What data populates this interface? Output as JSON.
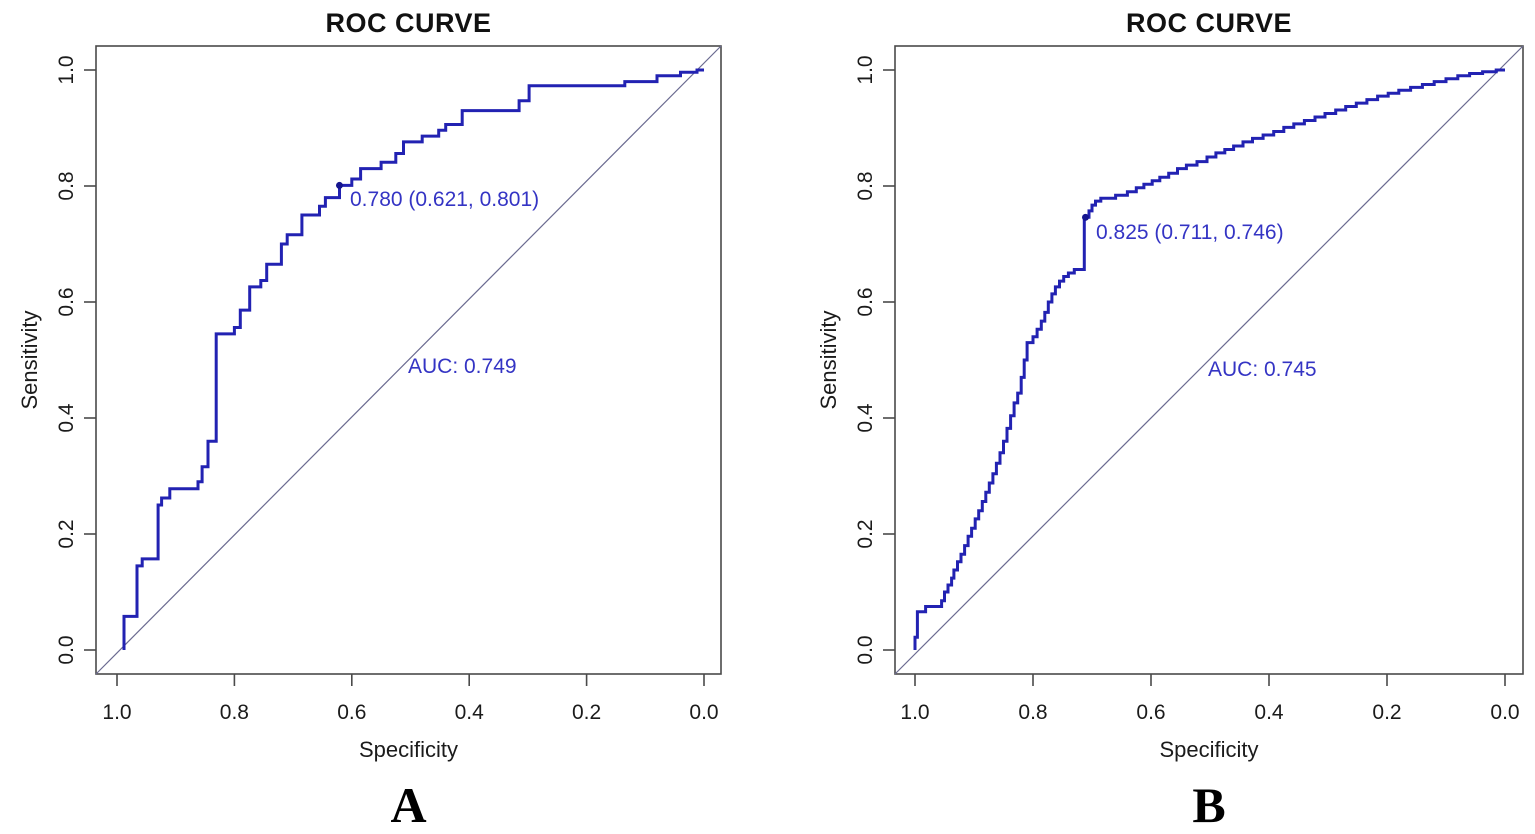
{
  "figure": {
    "background": "#ffffff"
  },
  "colors": {
    "curve": "#2222b2",
    "curve_dark": "#15158f",
    "annotation_text": "#3434c4",
    "diagonal": "#6a6a90",
    "frame": "#4a4a4a",
    "tick_text": "#1b1b1b",
    "axis_title_text": "#1b1b1b",
    "main_title_text": "#111111",
    "panel_letter_text": "#000000"
  },
  "chart_data": [
    {
      "type": "line",
      "subtype": "roc_step_curve",
      "title": "ROC CURVE",
      "panel_label": "A",
      "xlabel": "Specificity",
      "ylabel": "Sensitivity",
      "x_tick_labels": [
        "1.0",
        "0.8",
        "0.6",
        "0.4",
        "0.2",
        "0.0"
      ],
      "y_tick_labels": [
        "0.0",
        "0.2",
        "0.4",
        "0.6",
        "0.8",
        "1.0"
      ],
      "xlim": [
        1.0,
        0.0
      ],
      "ylim": [
        0.0,
        1.0
      ],
      "x_axis_reversed": true,
      "grid": false,
      "legend": false,
      "diagonal_reference": true,
      "auc": 0.749,
      "auc_label": "AUC: 0.749",
      "optimal_point": {
        "label": "0.780 (0.621, 0.801)",
        "threshold": 0.78,
        "specificity": 0.621,
        "sensitivity": 0.801
      },
      "series": [
        {
          "name": "ROC curve",
          "points_spec_sens": [
            [
              0.988,
              0.0
            ],
            [
              0.988,
              0.058
            ],
            [
              0.966,
              0.058
            ],
            [
              0.966,
              0.145
            ],
            [
              0.957,
              0.145
            ],
            [
              0.957,
              0.157
            ],
            [
              0.93,
              0.157
            ],
            [
              0.93,
              0.25
            ],
            [
              0.924,
              0.25
            ],
            [
              0.924,
              0.262
            ],
            [
              0.91,
              0.262
            ],
            [
              0.91,
              0.278
            ],
            [
              0.862,
              0.278
            ],
            [
              0.862,
              0.29
            ],
            [
              0.855,
              0.29
            ],
            [
              0.855,
              0.316
            ],
            [
              0.845,
              0.316
            ],
            [
              0.845,
              0.36
            ],
            [
              0.831,
              0.36
            ],
            [
              0.831,
              0.545
            ],
            [
              0.8,
              0.545
            ],
            [
              0.8,
              0.556
            ],
            [
              0.79,
              0.556
            ],
            [
              0.79,
              0.586
            ],
            [
              0.774,
              0.586
            ],
            [
              0.774,
              0.626
            ],
            [
              0.755,
              0.626
            ],
            [
              0.755,
              0.637
            ],
            [
              0.745,
              0.637
            ],
            [
              0.745,
              0.665
            ],
            [
              0.72,
              0.665
            ],
            [
              0.72,
              0.7
            ],
            [
              0.71,
              0.7
            ],
            [
              0.71,
              0.716
            ],
            [
              0.685,
              0.716
            ],
            [
              0.685,
              0.75
            ],
            [
              0.655,
              0.75
            ],
            [
              0.655,
              0.765
            ],
            [
              0.645,
              0.765
            ],
            [
              0.645,
              0.78
            ],
            [
              0.621,
              0.78
            ],
            [
              0.621,
              0.801
            ],
            [
              0.6,
              0.801
            ],
            [
              0.6,
              0.812
            ],
            [
              0.585,
              0.812
            ],
            [
              0.585,
              0.83
            ],
            [
              0.55,
              0.83
            ],
            [
              0.55,
              0.841
            ],
            [
              0.525,
              0.841
            ],
            [
              0.525,
              0.856
            ],
            [
              0.512,
              0.856
            ],
            [
              0.512,
              0.876
            ],
            [
              0.48,
              0.876
            ],
            [
              0.48,
              0.886
            ],
            [
              0.452,
              0.886
            ],
            [
              0.452,
              0.896
            ],
            [
              0.44,
              0.896
            ],
            [
              0.44,
              0.906
            ],
            [
              0.412,
              0.906
            ],
            [
              0.412,
              0.93
            ],
            [
              0.315,
              0.93
            ],
            [
              0.315,
              0.947
            ],
            [
              0.298,
              0.947
            ],
            [
              0.298,
              0.973
            ],
            [
              0.135,
              0.973
            ],
            [
              0.135,
              0.98
            ],
            [
              0.08,
              0.98
            ],
            [
              0.08,
              0.99
            ],
            [
              0.04,
              0.99
            ],
            [
              0.04,
              0.996
            ],
            [
              0.012,
              0.996
            ],
            [
              0.012,
              1.0
            ],
            [
              0.0,
              1.0
            ]
          ]
        }
      ]
    },
    {
      "type": "line",
      "subtype": "roc_step_curve",
      "title": "ROC CURVE",
      "panel_label": "B",
      "xlabel": "Specificity",
      "ylabel": "Sensitivity",
      "x_tick_labels": [
        "1.0",
        "0.8",
        "0.6",
        "0.4",
        "0.2",
        "0.0"
      ],
      "y_tick_labels": [
        "0.0",
        "0.2",
        "0.4",
        "0.6",
        "0.8",
        "1.0"
      ],
      "xlim": [
        1.0,
        0.0
      ],
      "ylim": [
        0.0,
        1.0
      ],
      "x_axis_reversed": true,
      "grid": false,
      "legend": false,
      "diagonal_reference": true,
      "auc": 0.745,
      "auc_label": "AUC: 0.745",
      "optimal_point": {
        "label": "0.825 (0.711, 0.746)",
        "threshold": 0.825,
        "specificity": 0.711,
        "sensitivity": 0.746
      },
      "series": [
        {
          "name": "ROC curve",
          "points_spec_sens": [
            [
              1.0,
              0.0
            ],
            [
              1.0,
              0.022
            ],
            [
              0.996,
              0.022
            ],
            [
              0.996,
              0.066
            ],
            [
              0.982,
              0.066
            ],
            [
              0.982,
              0.075
            ],
            [
              0.955,
              0.075
            ],
            [
              0.955,
              0.085
            ],
            [
              0.95,
              0.085
            ],
            [
              0.95,
              0.1
            ],
            [
              0.944,
              0.1
            ],
            [
              0.944,
              0.112
            ],
            [
              0.938,
              0.112
            ],
            [
              0.938,
              0.124
            ],
            [
              0.934,
              0.124
            ],
            [
              0.934,
              0.138
            ],
            [
              0.928,
              0.138
            ],
            [
              0.928,
              0.152
            ],
            [
              0.922,
              0.152
            ],
            [
              0.922,
              0.165
            ],
            [
              0.916,
              0.165
            ],
            [
              0.916,
              0.18
            ],
            [
              0.91,
              0.18
            ],
            [
              0.91,
              0.196
            ],
            [
              0.904,
              0.196
            ],
            [
              0.904,
              0.21
            ],
            [
              0.898,
              0.21
            ],
            [
              0.898,
              0.226
            ],
            [
              0.892,
              0.226
            ],
            [
              0.892,
              0.24
            ],
            [
              0.886,
              0.24
            ],
            [
              0.886,
              0.256
            ],
            [
              0.88,
              0.256
            ],
            [
              0.88,
              0.272
            ],
            [
              0.874,
              0.272
            ],
            [
              0.874,
              0.288
            ],
            [
              0.868,
              0.288
            ],
            [
              0.868,
              0.304
            ],
            [
              0.862,
              0.304
            ],
            [
              0.862,
              0.322
            ],
            [
              0.856,
              0.322
            ],
            [
              0.856,
              0.34
            ],
            [
              0.85,
              0.34
            ],
            [
              0.85,
              0.36
            ],
            [
              0.844,
              0.36
            ],
            [
              0.844,
              0.382
            ],
            [
              0.838,
              0.382
            ],
            [
              0.838,
              0.404
            ],
            [
              0.832,
              0.404
            ],
            [
              0.832,
              0.426
            ],
            [
              0.826,
              0.426
            ],
            [
              0.826,
              0.443
            ],
            [
              0.82,
              0.443
            ],
            [
              0.82,
              0.47
            ],
            [
              0.815,
              0.47
            ],
            [
              0.815,
              0.5
            ],
            [
              0.81,
              0.5
            ],
            [
              0.81,
              0.53
            ],
            [
              0.8,
              0.53
            ],
            [
              0.8,
              0.54
            ],
            [
              0.793,
              0.54
            ],
            [
              0.793,
              0.553
            ],
            [
              0.786,
              0.553
            ],
            [
              0.786,
              0.567
            ],
            [
              0.78,
              0.567
            ],
            [
              0.78,
              0.582
            ],
            [
              0.774,
              0.582
            ],
            [
              0.774,
              0.6
            ],
            [
              0.768,
              0.6
            ],
            [
              0.768,
              0.614
            ],
            [
              0.762,
              0.614
            ],
            [
              0.762,
              0.626
            ],
            [
              0.755,
              0.626
            ],
            [
              0.755,
              0.636
            ],
            [
              0.748,
              0.636
            ],
            [
              0.748,
              0.644
            ],
            [
              0.74,
              0.644
            ],
            [
              0.74,
              0.65
            ],
            [
              0.73,
              0.65
            ],
            [
              0.73,
              0.656
            ],
            [
              0.713,
              0.656
            ],
            [
              0.713,
              0.746
            ],
            [
              0.705,
              0.746
            ],
            [
              0.705,
              0.757
            ],
            [
              0.7,
              0.757
            ],
            [
              0.7,
              0.767
            ],
            [
              0.694,
              0.767
            ],
            [
              0.694,
              0.774
            ],
            [
              0.685,
              0.774
            ],
            [
              0.685,
              0.779
            ],
            [
              0.66,
              0.779
            ],
            [
              0.66,
              0.784
            ],
            [
              0.64,
              0.784
            ],
            [
              0.64,
              0.79
            ],
            [
              0.625,
              0.79
            ],
            [
              0.625,
              0.797
            ],
            [
              0.612,
              0.797
            ],
            [
              0.612,
              0.803
            ],
            [
              0.598,
              0.803
            ],
            [
              0.598,
              0.809
            ],
            [
              0.585,
              0.809
            ],
            [
              0.585,
              0.815
            ],
            [
              0.57,
              0.815
            ],
            [
              0.57,
              0.822
            ],
            [
              0.555,
              0.822
            ],
            [
              0.555,
              0.83
            ],
            [
              0.54,
              0.83
            ],
            [
              0.54,
              0.836
            ],
            [
              0.522,
              0.836
            ],
            [
              0.522,
              0.842
            ],
            [
              0.505,
              0.842
            ],
            [
              0.505,
              0.85
            ],
            [
              0.49,
              0.85
            ],
            [
              0.49,
              0.857
            ],
            [
              0.475,
              0.857
            ],
            [
              0.475,
              0.863
            ],
            [
              0.46,
              0.863
            ],
            [
              0.46,
              0.869
            ],
            [
              0.444,
              0.869
            ],
            [
              0.444,
              0.876
            ],
            [
              0.428,
              0.876
            ],
            [
              0.428,
              0.882
            ],
            [
              0.41,
              0.882
            ],
            [
              0.41,
              0.888
            ],
            [
              0.392,
              0.888
            ],
            [
              0.392,
              0.894
            ],
            [
              0.375,
              0.894
            ],
            [
              0.375,
              0.901
            ],
            [
              0.358,
              0.901
            ],
            [
              0.358,
              0.907
            ],
            [
              0.34,
              0.907
            ],
            [
              0.34,
              0.913
            ],
            [
              0.322,
              0.913
            ],
            [
              0.322,
              0.919
            ],
            [
              0.305,
              0.919
            ],
            [
              0.305,
              0.925
            ],
            [
              0.287,
              0.925
            ],
            [
              0.287,
              0.931
            ],
            [
              0.27,
              0.931
            ],
            [
              0.27,
              0.937
            ],
            [
              0.252,
              0.937
            ],
            [
              0.252,
              0.943
            ],
            [
              0.234,
              0.943
            ],
            [
              0.234,
              0.949
            ],
            [
              0.216,
              0.949
            ],
            [
              0.216,
              0.955
            ],
            [
              0.198,
              0.955
            ],
            [
              0.198,
              0.96
            ],
            [
              0.18,
              0.96
            ],
            [
              0.18,
              0.965
            ],
            [
              0.16,
              0.965
            ],
            [
              0.16,
              0.97
            ],
            [
              0.14,
              0.97
            ],
            [
              0.14,
              0.975
            ],
            [
              0.12,
              0.975
            ],
            [
              0.12,
              0.98
            ],
            [
              0.1,
              0.98
            ],
            [
              0.1,
              0.985
            ],
            [
              0.08,
              0.985
            ],
            [
              0.08,
              0.99
            ],
            [
              0.06,
              0.99
            ],
            [
              0.06,
              0.994
            ],
            [
              0.038,
              0.994
            ],
            [
              0.038,
              0.997
            ],
            [
              0.015,
              0.997
            ],
            [
              0.015,
              1.0
            ],
            [
              0.0,
              1.0
            ]
          ]
        }
      ]
    }
  ]
}
